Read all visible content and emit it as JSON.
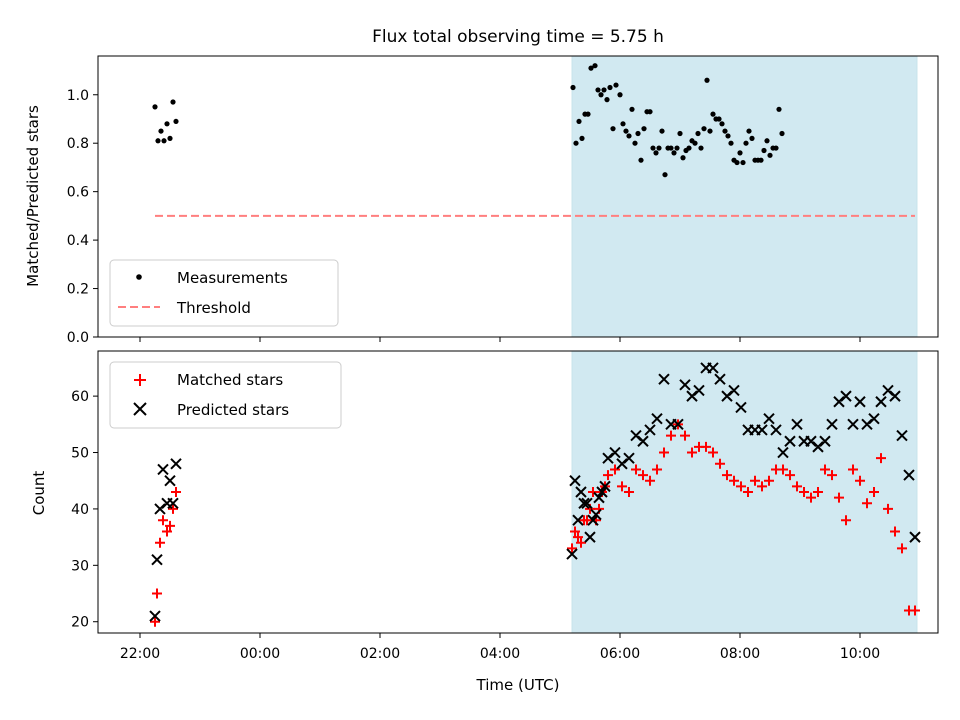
{
  "title": "Flux total observing time = 5.75 h",
  "xlabel": "Time (UTC)",
  "x_ticks": [
    "22:00",
    "00:00",
    "02:00",
    "04:00",
    "06:00",
    "08:00",
    "10:00"
  ],
  "x_tick_hours": [
    22,
    24,
    26,
    28,
    30,
    32,
    34
  ],
  "shade": {
    "from": "05:12",
    "to": "10:57",
    "color": "#add8e6"
  },
  "chart_data": [
    {
      "type": "scatter",
      "ylabel": "Matched/Predicted stars",
      "ylim": [
        0,
        1.16
      ],
      "y_ticks": [
        0.0,
        0.2,
        0.4,
        0.6,
        0.8,
        1.0
      ],
      "legend": {
        "location": "lower-left",
        "entries": [
          "Measurements",
          "Threshold"
        ]
      },
      "threshold": {
        "name": "Threshold",
        "value": 0.5,
        "x_range": [
          "22:15",
          "10:55"
        ],
        "color": "#ff7f7f",
        "style": "dashed"
      },
      "series": [
        {
          "name": "Measurements",
          "color": "#000000",
          "marker": "dot",
          "x": [
            "22:15",
            "22:18",
            "22:21",
            "22:24",
            "22:27",
            "22:30",
            "22:33",
            "22:36",
            "22:39",
            "22:42",
            "05:13",
            "05:16",
            "05:19",
            "05:22",
            "05:25",
            "05:28",
            "05:31",
            "05:35",
            "05:38",
            "05:41",
            "05:44",
            "05:47",
            "05:50",
            "05:53",
            "05:56",
            "06:00",
            "06:03",
            "06:06",
            "06:09",
            "06:12",
            "06:15",
            "06:18",
            "06:21",
            "06:24",
            "06:27",
            "06:30",
            "06:33",
            "06:36",
            "06:39",
            "06:42",
            "06:45",
            "06:48",
            "06:51",
            "06:54",
            "06:57",
            "07:00",
            "07:03",
            "07:06",
            "07:09",
            "07:12",
            "07:15",
            "07:18",
            "07:21",
            "07:24",
            "07:27",
            "07:30",
            "07:33",
            "07:36",
            "07:39",
            "07:42",
            "07:45",
            "07:48",
            "07:51",
            "07:54",
            "07:57",
            "08:00",
            "08:03",
            "08:06",
            "08:09",
            "08:12",
            "08:15",
            "08:18",
            "08:21",
            "08:24",
            "08:27",
            "08:30",
            "08:33",
            "08:36",
            "08:39",
            "08:42",
            "08:45",
            "08:48",
            "08:51",
            "08:54",
            "08:57",
            "09:00",
            "09:03",
            "09:06",
            "09:09",
            "09:12",
            "09:15",
            "09:18",
            "09:21",
            "09:24",
            "09:27",
            "09:30",
            "09:33",
            "09:36",
            "09:39",
            "09:42",
            "09:45",
            "09:48",
            "09:51",
            "09:54",
            "09:57",
            "10:00",
            "10:03",
            "10:06",
            "10:09",
            "10:12",
            "10:15",
            "10:18",
            "10:21",
            "10:24",
            "10:27",
            "10:30",
            "10:33",
            "10:36",
            "10:39",
            "10:42",
            "10:45",
            "10:48",
            "10:51",
            "10:54",
            "10:57"
          ],
          "y": [
            0.95,
            0.81,
            0.85,
            0.81,
            0.88,
            0.82,
            0.97,
            0.89,
            null,
            null,
            1.03,
            0.8,
            0.89,
            0.82,
            0.92,
            0.92,
            1.11,
            1.12,
            1.02,
            1.0,
            1.02,
            0.98,
            1.03,
            0.86,
            1.04,
            1.0,
            0.88,
            0.85,
            0.83,
            0.94,
            0.8,
            0.84,
            0.73,
            0.86,
            0.93,
            0.93,
            0.78,
            0.76,
            0.78,
            0.85,
            0.67,
            0.78,
            0.78,
            0.76,
            0.78,
            0.84,
            0.74,
            0.77,
            0.78,
            0.81,
            0.8,
            0.84,
            0.78,
            0.86,
            1.06,
            0.85,
            0.92,
            0.9,
            0.9,
            0.88,
            0.85,
            0.83,
            0.8,
            0.73,
            0.72,
            0.76,
            0.72,
            0.8,
            0.85,
            0.82,
            0.73,
            0.73,
            0.73,
            0.77,
            0.81,
            0.75,
            0.78,
            0.78,
            0.94,
            0.84,
            null,
            null,
            null,
            null,
            null,
            null,
            null,
            null,
            null,
            null,
            null,
            null,
            null,
            null,
            null,
            null,
            null,
            null,
            null,
            null,
            null,
            null,
            null,
            null,
            null,
            null,
            null,
            null,
            null,
            null,
            null,
            null,
            null,
            null,
            null,
            null,
            null,
            null,
            null,
            null,
            null,
            null,
            null,
            null,
            null
          ]
        }
      ]
    },
    {
      "type": "scatter",
      "ylabel": "Count",
      "ylim": [
        18,
        68
      ],
      "y_ticks": [
        20,
        30,
        40,
        50,
        60
      ],
      "legend": {
        "location": "top-left",
        "entries": [
          "Matched stars",
          "Predicted stars"
        ]
      },
      "series": [
        {
          "name": "Matched stars",
          "color": "#ff0000",
          "marker": "plus",
          "x": [
            "22:15",
            "22:17",
            "22:20",
            "22:23",
            "22:27",
            "22:30",
            "22:33",
            "22:36",
            "22:40",
            "05:12",
            "05:15",
            "05:18",
            "05:21",
            "05:24",
            "05:27",
            "05:30",
            "05:33",
            "05:36",
            "05:39",
            "05:42",
            "05:45",
            "05:48",
            "05:55",
            "06:02",
            "06:09",
            "06:16",
            "06:23",
            "06:30",
            "06:37",
            "06:44",
            "06:51",
            "06:58",
            "07:05",
            "07:12",
            "07:19",
            "07:26",
            "07:33",
            "07:40",
            "07:47",
            "07:54",
            "08:01",
            "08:08",
            "08:15",
            "08:22",
            "08:29",
            "08:36",
            "08:43",
            "08:50",
            "08:57",
            "09:04",
            "09:11",
            "09:18",
            "09:25",
            "09:32",
            "09:39",
            "09:46",
            "09:53",
            "10:00",
            "10:07",
            "10:14",
            "10:21",
            "10:28",
            "10:35",
            "10:42",
            "10:49",
            "10:55"
          ],
          "y": [
            20,
            25,
            34,
            38,
            36,
            37,
            40,
            43,
            null,
            33,
            36,
            35,
            34,
            38,
            38,
            40,
            43,
            38,
            40,
            43,
            44,
            46,
            47,
            44,
            43,
            47,
            46,
            45,
            47,
            50,
            53,
            55,
            53,
            50,
            51,
            51,
            50,
            48,
            46,
            45,
            44,
            43,
            45,
            44,
            45,
            47,
            47,
            46,
            44,
            43,
            42,
            43,
            47,
            46,
            42,
            38,
            47,
            45,
            41,
            43,
            49,
            40,
            36,
            33,
            22,
            22
          ]
        },
        {
          "name": "Predicted stars",
          "color": "#000000",
          "marker": "x",
          "x": [
            "22:15",
            "22:17",
            "22:20",
            "22:23",
            "22:27",
            "22:30",
            "22:33",
            "22:36",
            "22:40",
            "05:12",
            "05:15",
            "05:18",
            "05:21",
            "05:24",
            "05:27",
            "05:30",
            "05:33",
            "05:36",
            "05:39",
            "05:42",
            "05:45",
            "05:48",
            "05:55",
            "06:02",
            "06:09",
            "06:16",
            "06:23",
            "06:30",
            "06:37",
            "06:44",
            "06:51",
            "06:58",
            "07:05",
            "07:12",
            "07:19",
            "07:26",
            "07:33",
            "07:40",
            "07:47",
            "07:54",
            "08:01",
            "08:08",
            "08:15",
            "08:22",
            "08:29",
            "08:36",
            "08:43",
            "08:50",
            "08:57",
            "09:04",
            "09:11",
            "09:18",
            "09:25",
            "09:32",
            "09:39",
            "09:46",
            "09:53",
            "10:00",
            "10:07",
            "10:14",
            "10:21",
            "10:28",
            "10:35",
            "10:42",
            "10:49",
            "10:55"
          ],
          "y": [
            21,
            31,
            40,
            47,
            41,
            45,
            41,
            48,
            null,
            32,
            45,
            38,
            43,
            41,
            41,
            35,
            38,
            39,
            42,
            43,
            44,
            49,
            50,
            48,
            49,
            53,
            52,
            54,
            56,
            63,
            55,
            55,
            62,
            60,
            61,
            65,
            65,
            63,
            60,
            61,
            58,
            54,
            54,
            54,
            56,
            54,
            50,
            52,
            55,
            52,
            52,
            51,
            52,
            55,
            59,
            60,
            55,
            59,
            55,
            56,
            59,
            61,
            60,
            53,
            46,
            35
          ]
        }
      ]
    }
  ]
}
